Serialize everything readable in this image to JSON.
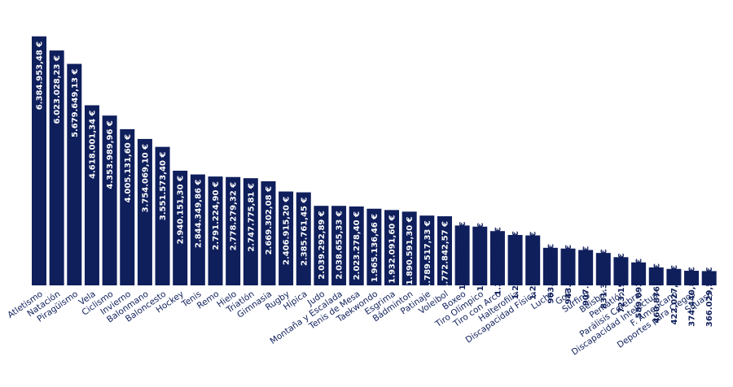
{
  "chart_data": {
    "type": "bar",
    "title": "",
    "xlabel": "",
    "ylabel": "",
    "ylim": [
      0,
      6400000
    ],
    "grid": false,
    "legend": "none",
    "bar_color": "#0f1f5c",
    "label_color_inside": "#ffffff",
    "label_color_outside": "#0f1f5c",
    "categories": [
      "Atletismo",
      "Natación",
      "Piragüismo",
      "Vela",
      "Ciclismo",
      "Invierno",
      "Balonmano",
      "Baloncesto",
      "Hockey",
      "Tenis",
      "Remo",
      "Hielo",
      "Triatlón",
      "Gimnasia",
      "Rugby",
      "Hípica",
      "Judo",
      "Montaña y Escalada",
      "Tenis de Mesa",
      "Taekwondo",
      "Esgrima",
      "Bádminton",
      "Patinaje",
      "Voleibol",
      "Boxeo",
      "Tiro Olímpico",
      "Tiro con Arco",
      "Halterofilia",
      "Discapacidad Física",
      "Lucha",
      "Golf",
      "Surfing",
      "Béisbol",
      "Pentatlón",
      "Parálisis Cerebral",
      "Discapacidad Intelectual",
      "F. Americano",
      "Deportes para Ciegos",
      "Squash"
    ],
    "values": [
      6384953.48,
      6023028.23,
      5679649.13,
      4618001.34,
      4353989.96,
      4005131.6,
      3754069.1,
      3551573.4,
      2940151.3,
      2844349.86,
      2791224.9,
      2778279.32,
      2747775.81,
      2669302.08,
      2406915.2,
      2385761.45,
      2039292.89,
      2038655.33,
      2023278.4,
      1965136.46,
      1932091.6,
      1890591.3,
      1789517.33,
      1772842.57,
      1535424.24,
      1505714.51,
      1392432.42,
      1292240.25,
      1281106.54,
      963059.32,
      943787.25,
      907171.54,
      831390.33,
      723195.5,
      589093.43,
      460876.07,
      422027.1,
      374440.84,
      366029.59
    ],
    "data_labels": [
      "6.384.953,48 €",
      "6.023.028,23 €",
      "5.679.649,13 €",
      "4.618.001,34 €",
      "4.353.989,96 €",
      "4.005.131,60 €",
      "3.754.069,10 €",
      "3.551.573,40 €",
      "2.940.151,30 €",
      "2.844.349,86 €",
      "2.791.224,90 €",
      "2.778.279,32 €",
      "2.747.775,81 €",
      "2.669.302,08 €",
      "2.406.915,20 €",
      "2.385.761,45 €",
      "2.039.292,89 €",
      "2.038.655,33 €",
      "2.023.278,40 €",
      "1.965.136,46 €",
      "1.932.091,60 €",
      "1.890.591,30 €",
      "1.789.517,33 €",
      "1.772.842,57 €",
      "1.535.424,24 €",
      "1.505.714,51 €",
      "1.392.432,42 €",
      "1.292.240,25 €",
      "1.281.106,54 €",
      "963.059,32 €",
      "943.787,25 €",
      "907.171,54 €",
      "831.390,33 €",
      "723.195,50 €",
      "589.093,43 €",
      "460.876,07 €",
      "422.027,10 €",
      "374.440,84 €",
      "366.029,59 €"
    ],
    "labels_inside_count": 24
  }
}
